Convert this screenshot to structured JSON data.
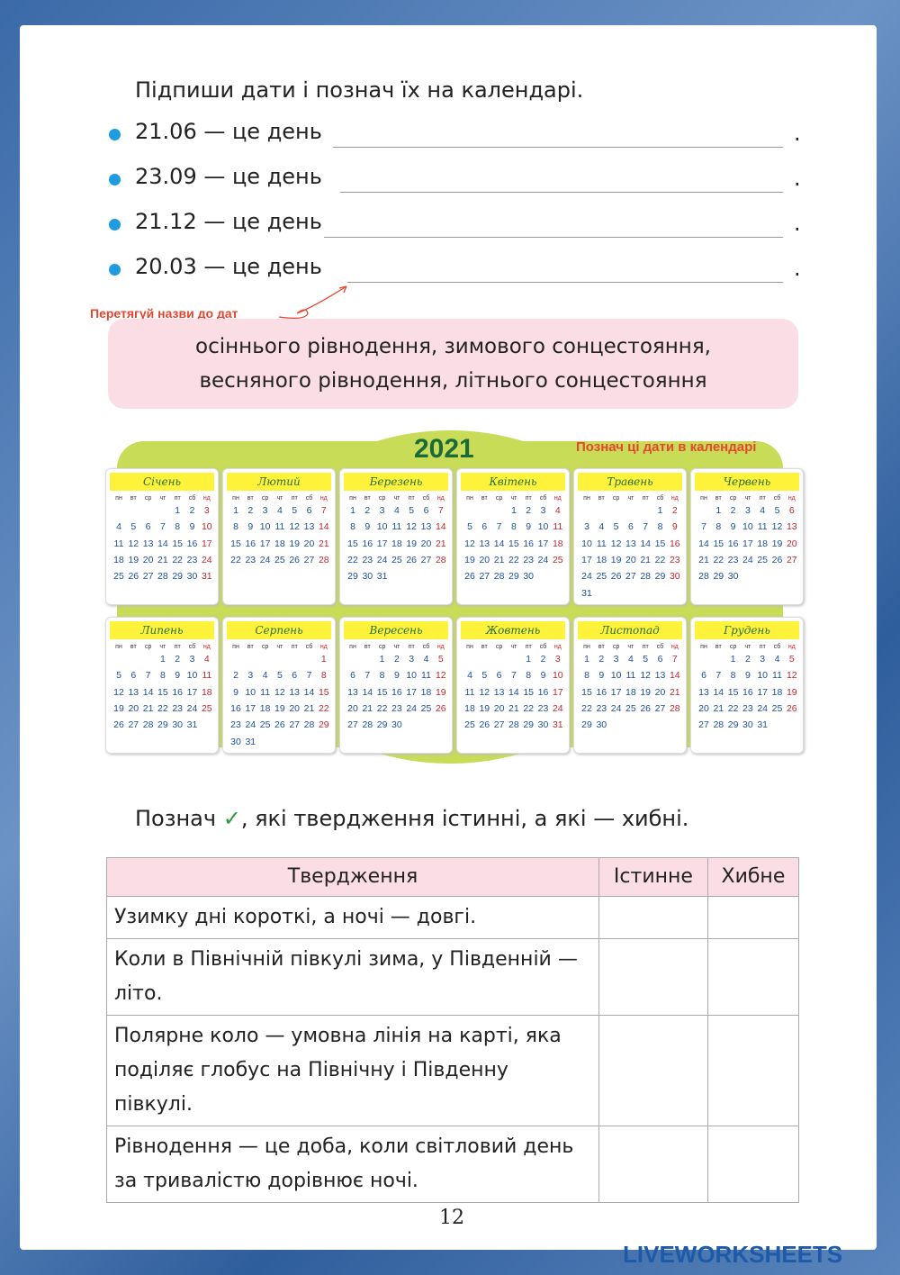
{
  "task1": {
    "title": "Підпиши дати і познач їх на календарі.",
    "items": [
      "21.06 — це день",
      "23.09 — це день",
      "21.12 — це день",
      "20.03 — це день"
    ],
    "end": ".",
    "hint": "Перетягуй назви до дат",
    "words": [
      "осіннього рівнодення, зимового сонцестояння,",
      "весняного рівнодення, літнього сонцестояння"
    ]
  },
  "calendar": {
    "year": "2021",
    "hint": "Познач ці дати в календарі",
    "weekdays": [
      "пн",
      "вт",
      "ср",
      "чт",
      "пт",
      "сб",
      "нд"
    ],
    "months": [
      {
        "name": "Січень",
        "weeks": [
          [
            null,
            null,
            null,
            null,
            1,
            2,
            3
          ],
          [
            4,
            5,
            6,
            7,
            8,
            9,
            10
          ],
          [
            11,
            12,
            13,
            14,
            15,
            16,
            17
          ],
          [
            18,
            19,
            20,
            21,
            22,
            23,
            24
          ],
          [
            25,
            26,
            27,
            28,
            29,
            30,
            31
          ]
        ]
      },
      {
        "name": "Лютий",
        "weeks": [
          [
            1,
            2,
            3,
            4,
            5,
            6,
            7
          ],
          [
            8,
            9,
            10,
            11,
            12,
            13,
            14
          ],
          [
            15,
            16,
            17,
            18,
            19,
            20,
            21
          ],
          [
            22,
            23,
            24,
            25,
            26,
            27,
            28
          ]
        ]
      },
      {
        "name": "Березень",
        "weeks": [
          [
            1,
            2,
            3,
            4,
            5,
            6,
            7
          ],
          [
            8,
            9,
            10,
            11,
            12,
            13,
            14
          ],
          [
            15,
            16,
            17,
            18,
            19,
            20,
            21
          ],
          [
            22,
            23,
            24,
            25,
            26,
            27,
            28
          ],
          [
            29,
            30,
            31
          ]
        ]
      },
      {
        "name": "Квітень",
        "weeks": [
          [
            null,
            null,
            null,
            1,
            2,
            3,
            4
          ],
          [
            5,
            6,
            7,
            8,
            9,
            10,
            11
          ],
          [
            12,
            13,
            14,
            15,
            16,
            17,
            18
          ],
          [
            19,
            20,
            21,
            22,
            23,
            24,
            25
          ],
          [
            26,
            27,
            28,
            29,
            30
          ]
        ]
      },
      {
        "name": "Травень",
        "weeks": [
          [
            null,
            null,
            null,
            null,
            null,
            1,
            2
          ],
          [
            3,
            4,
            5,
            6,
            7,
            8,
            9
          ],
          [
            10,
            11,
            12,
            13,
            14,
            15,
            16
          ],
          [
            17,
            18,
            19,
            20,
            21,
            22,
            23
          ],
          [
            24,
            25,
            26,
            27,
            28,
            29,
            30
          ],
          [
            31
          ]
        ]
      },
      {
        "name": "Червень",
        "weeks": [
          [
            null,
            1,
            2,
            3,
            4,
            5,
            6
          ],
          [
            7,
            8,
            9,
            10,
            11,
            12,
            13
          ],
          [
            14,
            15,
            16,
            17,
            18,
            19,
            20
          ],
          [
            21,
            22,
            23,
            24,
            25,
            26,
            27
          ],
          [
            28,
            29,
            30
          ]
        ]
      },
      {
        "name": "Липень",
        "weeks": [
          [
            null,
            null,
            null,
            1,
            2,
            3,
            4
          ],
          [
            5,
            6,
            7,
            8,
            9,
            10,
            11
          ],
          [
            12,
            13,
            14,
            15,
            16,
            17,
            18
          ],
          [
            19,
            20,
            21,
            22,
            23,
            24,
            25
          ],
          [
            26,
            27,
            28,
            29,
            30,
            31
          ]
        ]
      },
      {
        "name": "Серпень",
        "weeks": [
          [
            null,
            null,
            null,
            null,
            null,
            null,
            1
          ],
          [
            2,
            3,
            4,
            5,
            6,
            7,
            8
          ],
          [
            9,
            10,
            11,
            12,
            13,
            14,
            15
          ],
          [
            16,
            17,
            18,
            19,
            20,
            21,
            22
          ],
          [
            23,
            24,
            25,
            26,
            27,
            28,
            29
          ],
          [
            30,
            31
          ]
        ]
      },
      {
        "name": "Вересень",
        "weeks": [
          [
            null,
            null,
            1,
            2,
            3,
            4,
            5
          ],
          [
            6,
            7,
            8,
            9,
            10,
            11,
            12
          ],
          [
            13,
            14,
            15,
            16,
            17,
            18,
            19
          ],
          [
            20,
            21,
            22,
            23,
            24,
            25,
            26
          ],
          [
            27,
            28,
            29,
            30
          ]
        ]
      },
      {
        "name": "Жовтень",
        "weeks": [
          [
            null,
            null,
            null,
            null,
            1,
            2,
            3
          ],
          [
            4,
            5,
            6,
            7,
            8,
            9,
            10
          ],
          [
            11,
            12,
            13,
            14,
            15,
            16,
            17
          ],
          [
            18,
            19,
            20,
            21,
            22,
            23,
            24
          ],
          [
            25,
            26,
            27,
            28,
            29,
            30,
            31
          ]
        ]
      },
      {
        "name": "Листопад",
        "weeks": [
          [
            1,
            2,
            3,
            4,
            5,
            6,
            7
          ],
          [
            8,
            9,
            10,
            11,
            12,
            13,
            14
          ],
          [
            15,
            16,
            17,
            18,
            19,
            20,
            21
          ],
          [
            22,
            23,
            24,
            25,
            26,
            27,
            28
          ],
          [
            29,
            30
          ]
        ]
      },
      {
        "name": "Грудень",
        "weeks": [
          [
            null,
            null,
            1,
            2,
            3,
            4,
            5
          ],
          [
            6,
            7,
            8,
            9,
            10,
            11,
            12
          ],
          [
            13,
            14,
            15,
            16,
            17,
            18,
            19
          ],
          [
            20,
            21,
            22,
            23,
            24,
            25,
            26
          ],
          [
            27,
            28,
            29,
            30,
            31
          ]
        ]
      }
    ]
  },
  "task2": {
    "title_start": "Познач",
    "check": "✓",
    "title_end": ", які твердження істинні, а які — хибні.",
    "table": {
      "header": [
        "Твердження",
        "Істинне",
        "Хибне"
      ],
      "rows": [
        "Узимку дні короткі, а ночі — довгі.",
        "Коли в Північній півкулі зима, у Південній — літо.",
        "Полярне коло — умовна лінія на карті, яка поділяє глобус на Північну і Південну півкулі.",
        "Рівнодення — це доба, коли світловий день за тривалістю дорівнює ночі."
      ]
    }
  },
  "footer": {
    "page": "12",
    "logo": "LIVEWORKSHEETS"
  }
}
